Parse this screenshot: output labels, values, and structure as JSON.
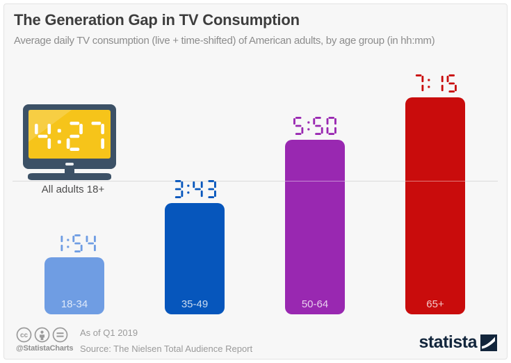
{
  "header": {
    "title": "The Generation Gap in TV Consumption",
    "subtitle": "Average daily TV consumption (live + time-shifted) of American adults, by age group (in hh:mm)"
  },
  "chart_data": {
    "type": "bar",
    "title": "The Generation Gap in TV Consumption",
    "unit": "hh:mm",
    "categories": [
      "18-34",
      "35-49",
      "50-64",
      "65+"
    ],
    "values": [
      "1:54",
      "3:43",
      "5:50",
      "7:15"
    ],
    "values_hours": [
      1.9,
      3.717,
      5.833,
      7.25
    ],
    "bar_colors": [
      "#6f9de3",
      "#0656bc",
      "#9928b1",
      "#c90c0c"
    ],
    "reference_line": {
      "label": "All adults 18+",
      "value": "4:27",
      "value_hours": 4.45
    },
    "ylim": [
      0,
      7.5
    ],
    "grid": "single reference line at 4:27",
    "legend_position": "none"
  },
  "tv_icon": {
    "display_value": "4:27",
    "display_color": "#ffffff",
    "screen_color": "#f6c41a",
    "frame_color": "#3c5166"
  },
  "footer": {
    "icons": [
      "cc-icon",
      "attribution-icon",
      "no-derivatives-icon"
    ],
    "handle": "@StatistaCharts",
    "as_of": "As of Q1 2019",
    "source": "Source: The Nielsen Total Audience Report",
    "brand": "statista",
    "brand_color": "#13263c"
  }
}
